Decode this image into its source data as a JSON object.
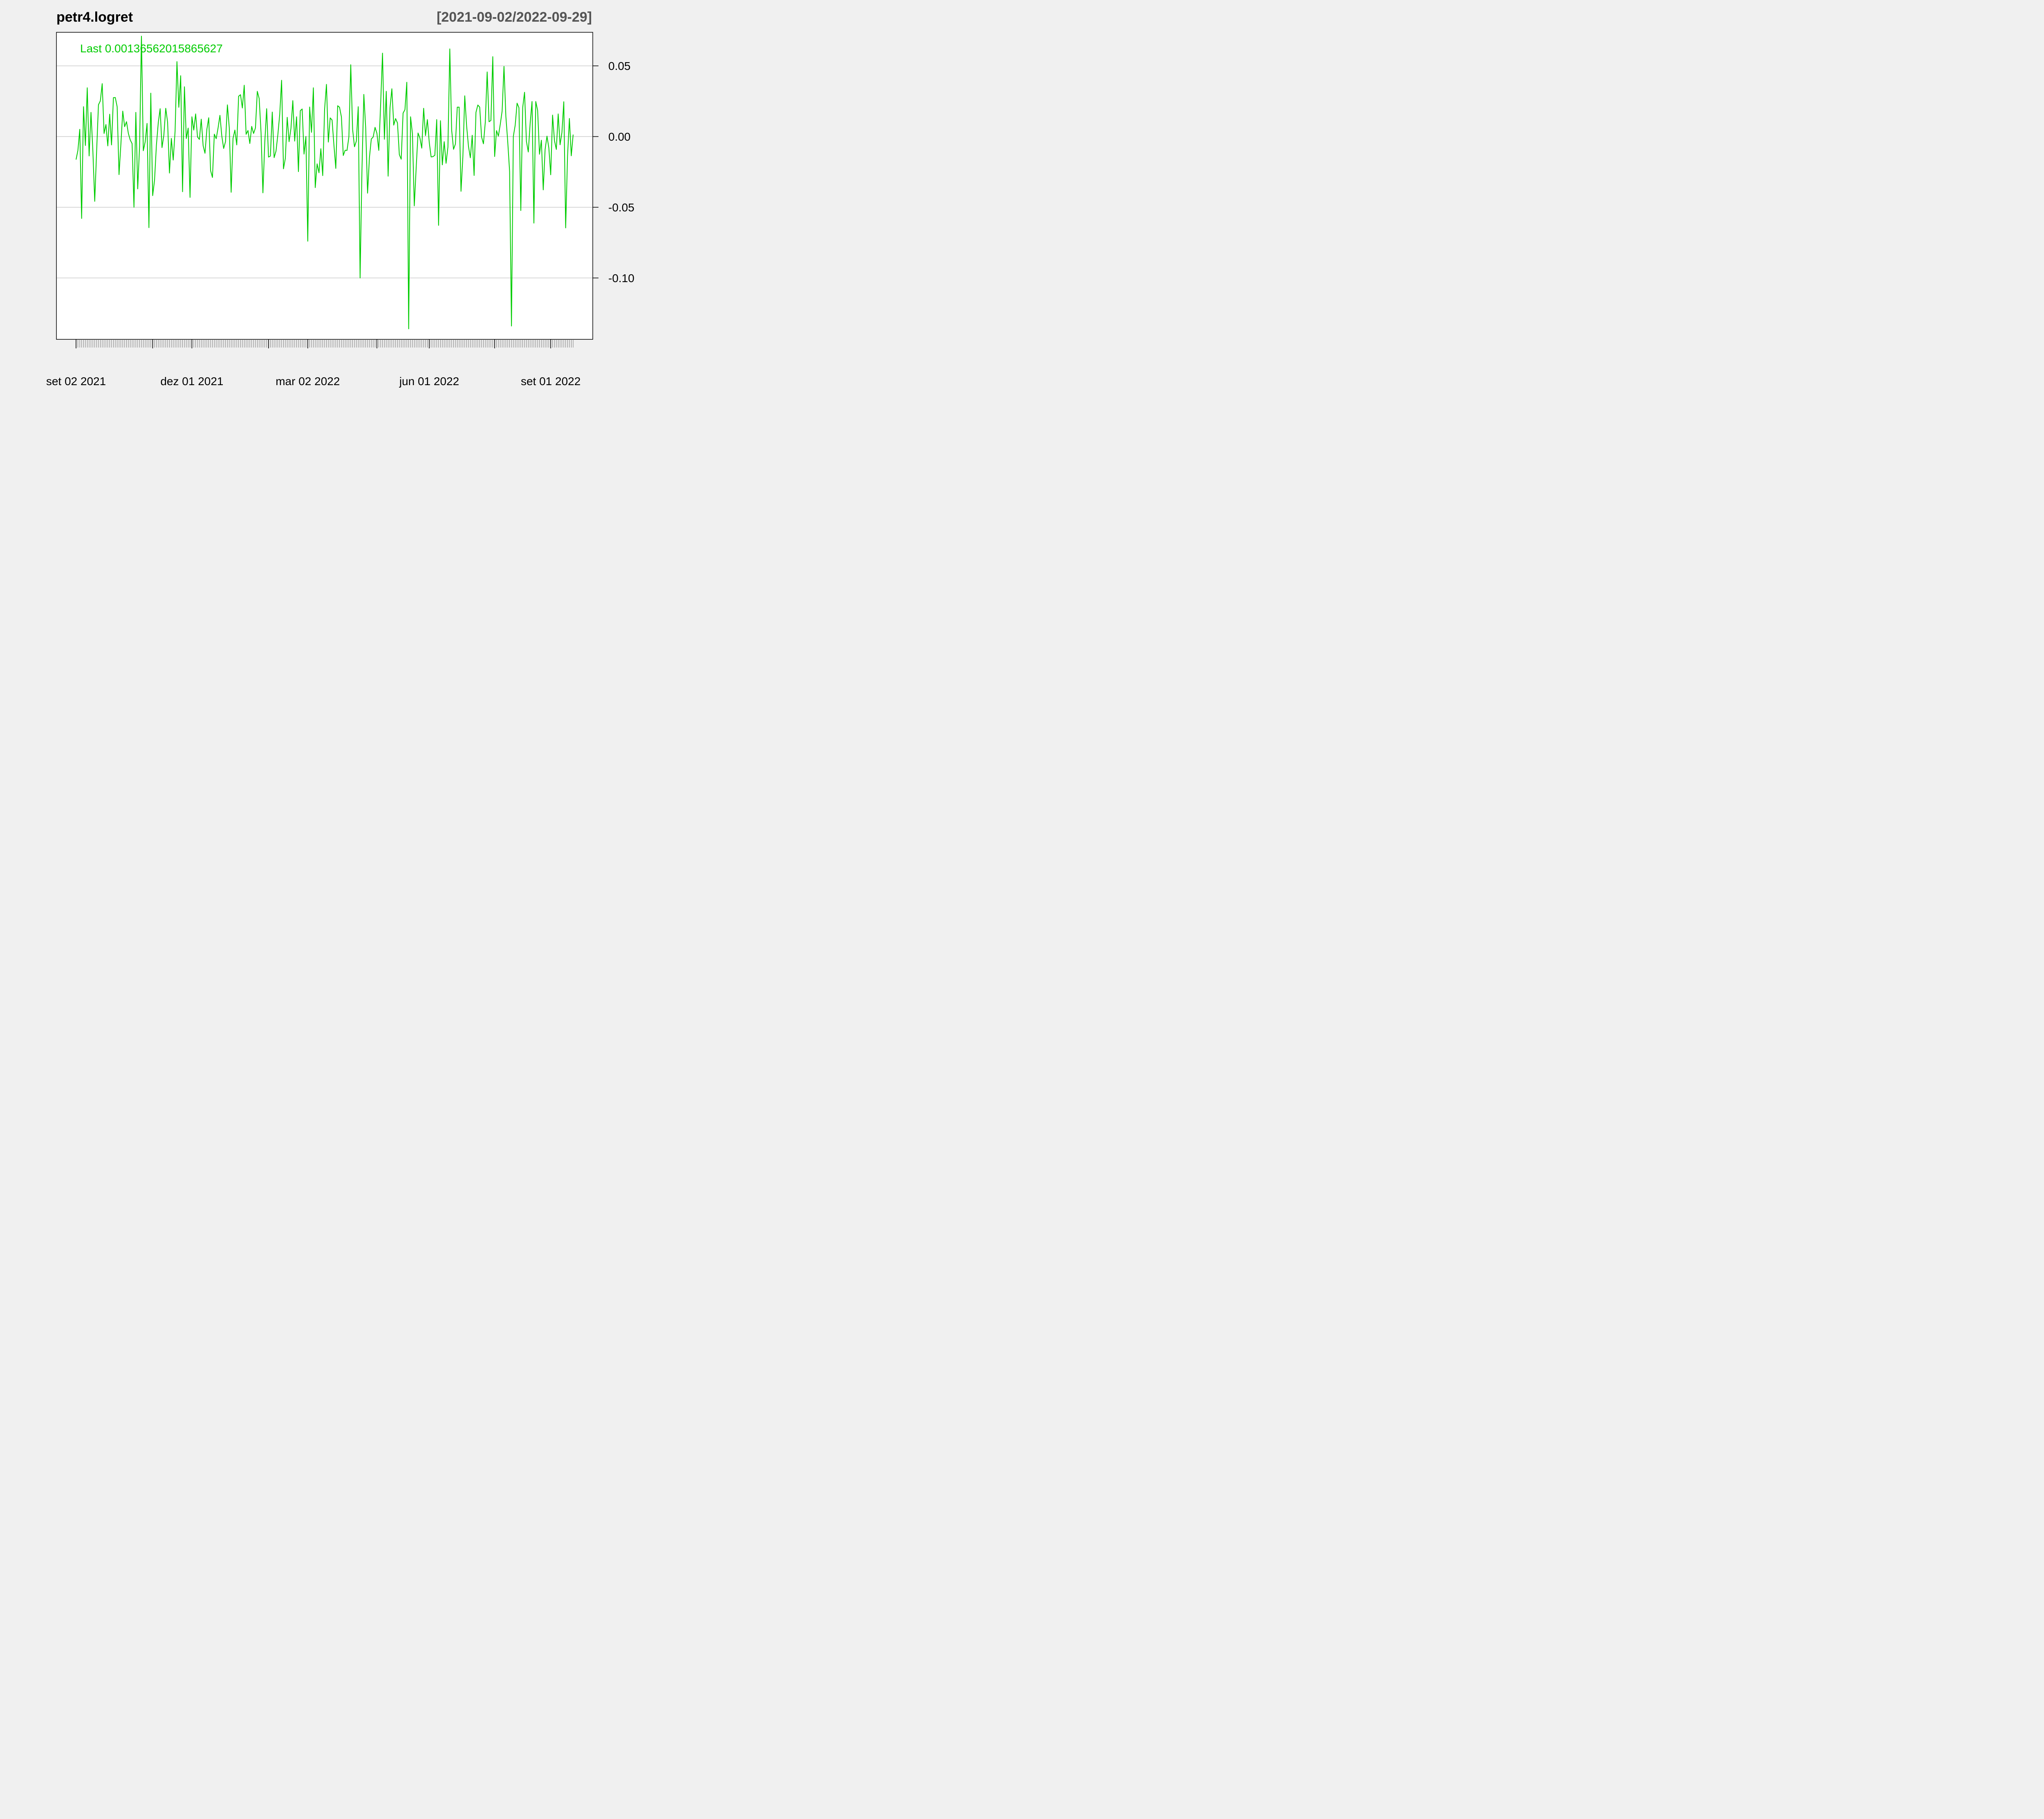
{
  "chart_data": {
    "type": "line",
    "title": "petr4.logret",
    "range_label": "[2021-09-02/2022-09-29]",
    "last_label": "Last 0.00136562015865627",
    "series_color": "#00cc00",
    "grid": true,
    "ylim": [
      -0.135,
      0.073
    ],
    "y_ticks": [
      {
        "value": 0.05,
        "label": "0.05"
      },
      {
        "value": 0.0,
        "label": "0.00"
      },
      {
        "value": -0.05,
        "label": "-0.05"
      },
      {
        "value": -0.1,
        "label": "-0.10"
      }
    ],
    "x_labels": [
      {
        "index": 0,
        "label": "set 02 2021"
      },
      {
        "index": 62,
        "label": "dez 01 2021"
      },
      {
        "index": 124,
        "label": "mar 02 2022"
      },
      {
        "index": 189,
        "label": "jun 01 2022"
      },
      {
        "index": 254,
        "label": "set 01 2022"
      }
    ],
    "x_major_ticks": [
      0,
      41,
      62,
      103,
      124,
      161,
      189,
      224,
      254,
      276
    ],
    "values": [
      -0.0163,
      -0.0098,
      0.0051,
      -0.0579,
      0.0211,
      -0.0063,
      0.0345,
      -0.0137,
      0.0171,
      -0.01,
      -0.0458,
      -0.0108,
      0.0225,
      0.0252,
      0.0374,
      0.0022,
      0.0085,
      -0.0066,
      0.0158,
      -0.0059,
      0.0275,
      0.0276,
      0.0211,
      -0.0269,
      -0.0054,
      0.018,
      0.007,
      0.0105,
      0.0022,
      -0.0024,
      -0.005,
      -0.05,
      0.0171,
      -0.037,
      -0.007,
      0.071,
      -0.01,
      -0.0037,
      0.0093,
      -0.0644,
      0.0307,
      -0.0418,
      -0.031,
      -0.0062,
      0.0097,
      0.0197,
      -0.0078,
      0.0011,
      0.02,
      0.0101,
      -0.0258,
      -0.0013,
      -0.0166,
      0.0038,
      0.053,
      0.0207,
      0.043,
      -0.039,
      0.0352,
      -0.0014,
      0.006,
      -0.043,
      0.014,
      0.0046,
      0.016,
      -0.0003,
      -0.002,
      0.0123,
      -0.0064,
      -0.0118,
      0.0051,
      0.0133,
      -0.0241,
      -0.0289,
      0.0017,
      -0.0015,
      0.0061,
      0.015,
      0.0004,
      -0.0084,
      -0.0035,
      0.0224,
      0.0061,
      -0.0394,
      -0.0013,
      0.0046,
      -0.0059,
      0.0285,
      0.0296,
      0.0202,
      0.0363,
      0.0016,
      0.0043,
      -0.0049,
      0.0072,
      0.0022,
      0.0061,
      0.032,
      0.0269,
      0.0027,
      -0.0398,
      -0.004,
      0.0197,
      -0.0145,
      -0.0138,
      0.0173,
      -0.0149,
      -0.0103,
      0.0014,
      0.0158,
      0.0398,
      -0.0228,
      -0.0154,
      0.0136,
      -0.0036,
      0.0057,
      0.0254,
      -0.0032,
      0.014,
      -0.0248,
      0.0183,
      0.0195,
      -0.0124,
      0.0001,
      -0.074,
      0.0209,
      0.003,
      0.0345,
      -0.0361,
      -0.0193,
      -0.0256,
      -0.0086,
      -0.0276,
      0.0192,
      0.0369,
      -0.0039,
      0.0132,
      0.0117,
      -0.0061,
      -0.0225,
      0.0218,
      0.0207,
      0.0139,
      -0.0134,
      -0.0097,
      -0.0098,
      -0.0002,
      0.0508,
      0.005,
      -0.0072,
      -0.0032,
      0.0211,
      -0.1,
      -0.0231,
      0.0298,
      0.0059,
      -0.04,
      -0.0148,
      -0.0017,
      -0.0003,
      0.0065,
      0.0023,
      -0.0098,
      0.0232,
      0.059,
      -0.0019,
      0.032,
      -0.028,
      0.0202,
      0.0338,
      0.0081,
      0.0127,
      0.0096,
      -0.0128,
      -0.016,
      0.0166,
      0.019,
      0.0384,
      -0.136,
      0.014,
      0.0021,
      -0.049,
      -0.0224,
      0.0025,
      -0.001,
      -0.0082,
      0.02,
      0.0007,
      0.012,
      -0.004,
      -0.0144,
      -0.0142,
      -0.0132,
      0.012,
      -0.0628,
      0.0112,
      -0.02,
      -0.0036,
      -0.0189,
      -0.0074,
      0.062,
      0.0045,
      -0.009,
      -0.0053,
      0.0208,
      0.0208,
      -0.0387,
      -0.0141,
      0.0288,
      0.0075,
      -0.007,
      -0.015,
      0.0009,
      -0.0275,
      0.0171,
      0.0223,
      0.0208,
      -0.0003,
      -0.0051,
      0.0103,
      0.0457,
      0.0105,
      0.0114,
      0.0565,
      -0.0141,
      0.0042,
      0.0003,
      0.0086,
      0.018,
      0.0496,
      0.0143,
      -0.0036,
      -0.0246,
      -0.134,
      0.0001,
      0.0081,
      0.0236,
      0.0204,
      -0.0523,
      0.0204,
      0.0313,
      -0.0034,
      -0.0109,
      0.0094,
      0.0248,
      -0.0612,
      0.0248,
      0.0185,
      -0.0125,
      -0.0026,
      -0.0377,
      -0.0091,
      0.0003,
      -0.008,
      -0.027,
      0.0152,
      -0.0028,
      -0.0091,
      0.016,
      -0.0058,
      0.0029,
      0.0246,
      -0.0646,
      -0.0139,
      0.0128,
      -0.0136,
      0.0014
    ]
  }
}
